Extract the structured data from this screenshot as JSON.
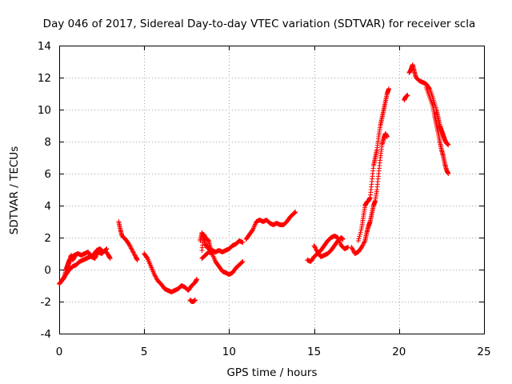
{
  "chart_data": {
    "type": "scatter",
    "title": "Day 046 of 2017, Sidereal Day-to-day VTEC variation (SDTVAR) for receiver scla",
    "xlabel": "GPS time / hours",
    "ylabel": "SDTVAR / TECUs",
    "xlim": [
      0,
      25
    ],
    "ylim": [
      -4,
      14
    ],
    "xticks": [
      0,
      5,
      10,
      15,
      20,
      25
    ],
    "yticks": [
      -4,
      -2,
      0,
      2,
      4,
      6,
      8,
      10,
      12,
      14
    ],
    "grid": true,
    "marker": "+",
    "color": "#ff0000",
    "series": [
      {
        "name": "SDTVAR",
        "segments": [
          [
            [
              0,
              -0.9
            ],
            [
              0.15,
              -0.7
            ],
            [
              0.3,
              -0.5
            ],
            [
              0.4,
              0.0
            ],
            [
              0.5,
              0.3
            ],
            [
              0.6,
              0.6
            ],
            [
              0.75,
              0.8
            ],
            [
              0.9,
              0.9
            ],
            [
              1.1,
              1.0
            ],
            [
              1.3,
              0.9
            ],
            [
              1.5,
              1.0
            ],
            [
              1.7,
              1.1
            ],
            [
              1.9,
              0.8
            ],
            [
              2.1,
              0.7
            ],
            [
              2.3,
              1.1
            ],
            [
              2.5,
              1.0
            ],
            [
              2.7,
              1.2
            ],
            [
              2.9,
              0.9
            ],
            [
              3.0,
              0.7
            ]
          ],
          [
            [
              0.2,
              -0.6
            ],
            [
              0.4,
              -0.3
            ],
            [
              0.6,
              0.0
            ],
            [
              0.8,
              0.2
            ],
            [
              1.0,
              0.3
            ],
            [
              1.2,
              0.5
            ],
            [
              1.4,
              0.6
            ],
            [
              1.6,
              0.7
            ],
            [
              1.8,
              0.8
            ],
            [
              2.0,
              0.9
            ],
            [
              2.2,
              1.2
            ],
            [
              2.4,
              1.3
            ],
            [
              2.6,
              1.1
            ],
            [
              2.8,
              1.3
            ]
          ],
          [
            [
              0.5,
              0.2
            ],
            [
              0.6,
              0.5
            ],
            [
              0.7,
              0.9
            ],
            [
              0.8,
              0.6
            ],
            [
              0.9,
              0.8
            ]
          ],
          [
            [
              3.5,
              3.0
            ],
            [
              3.6,
              2.5
            ],
            [
              3.7,
              2.1
            ],
            [
              3.9,
              1.9
            ],
            [
              4.1,
              1.6
            ],
            [
              4.3,
              1.2
            ],
            [
              4.5,
              0.8
            ],
            [
              4.6,
              0.6
            ]
          ],
          [
            [
              5.0,
              1.0
            ],
            [
              5.2,
              0.7
            ],
            [
              5.4,
              0.2
            ],
            [
              5.6,
              -0.3
            ],
            [
              5.8,
              -0.7
            ],
            [
              6.0,
              -0.9
            ],
            [
              6.2,
              -1.2
            ],
            [
              6.4,
              -1.3
            ],
            [
              6.6,
              -1.4
            ],
            [
              6.8,
              -1.3
            ],
            [
              7.0,
              -1.2
            ],
            [
              7.2,
              -1.0
            ],
            [
              7.4,
              -1.1
            ],
            [
              7.6,
              -1.3
            ],
            [
              7.8,
              -1.0
            ],
            [
              8.0,
              -0.8
            ],
            [
              8.1,
              -0.6
            ]
          ],
          [
            [
              7.7,
              -1.9
            ],
            [
              7.8,
              -2.0
            ],
            [
              7.9,
              -2.0
            ],
            [
              8.0,
              -1.9
            ]
          ],
          [
            [
              8.4,
              1.2
            ],
            [
              8.5,
              2.2
            ],
            [
              8.6,
              2.0
            ],
            [
              8.7,
              1.9
            ],
            [
              8.8,
              1.8
            ],
            [
              8.9,
              1.3
            ],
            [
              9.0,
              1.2
            ],
            [
              9.2,
              1.1
            ],
            [
              9.4,
              1.2
            ],
            [
              9.6,
              1.1
            ],
            [
              9.8,
              1.2
            ],
            [
              10.0,
              1.3
            ],
            [
              10.2,
              1.5
            ],
            [
              10.4,
              1.6
            ],
            [
              10.6,
              1.8
            ],
            [
              10.8,
              1.7
            ]
          ],
          [
            [
              8.4,
              0.7
            ],
            [
              8.6,
              0.9
            ],
            [
              8.8,
              1.1
            ],
            [
              9.0,
              1.0
            ],
            [
              9.2,
              0.5
            ],
            [
              9.4,
              0.2
            ],
            [
              9.6,
              -0.1
            ],
            [
              9.8,
              -0.2
            ],
            [
              10.0,
              -0.3
            ],
            [
              10.2,
              -0.2
            ],
            [
              10.4,
              0.1
            ],
            [
              10.6,
              0.3
            ],
            [
              10.8,
              0.5
            ]
          ],
          [
            [
              8.3,
              1.8
            ],
            [
              8.4,
              2.3
            ],
            [
              8.5,
              2.1
            ],
            [
              8.6,
              1.6
            ],
            [
              8.7,
              1.4
            ],
            [
              8.8,
              1.3
            ]
          ],
          [
            [
              11.0,
              1.9
            ],
            [
              11.2,
              2.2
            ],
            [
              11.4,
              2.5
            ],
            [
              11.6,
              3.0
            ],
            [
              11.8,
              3.1
            ],
            [
              12.0,
              3.0
            ],
            [
              12.2,
              3.1
            ],
            [
              12.4,
              2.9
            ],
            [
              12.6,
              2.8
            ],
            [
              12.8,
              2.9
            ],
            [
              13.0,
              2.8
            ],
            [
              13.2,
              2.8
            ],
            [
              13.4,
              3.0
            ],
            [
              13.6,
              3.3
            ],
            [
              13.8,
              3.5
            ],
            [
              13.9,
              3.6
            ]
          ],
          [
            [
              14.6,
              0.6
            ],
            [
              14.8,
              0.5
            ],
            [
              15.0,
              0.8
            ],
            [
              15.2,
              1.0
            ],
            [
              15.4,
              1.2
            ],
            [
              15.6,
              1.5
            ],
            [
              15.8,
              1.8
            ],
            [
              16.0,
              2.0
            ],
            [
              16.2,
              2.1
            ],
            [
              16.4,
              2.0
            ],
            [
              16.6,
              1.5
            ],
            [
              16.8,
              1.3
            ],
            [
              17.0,
              1.4
            ]
          ],
          [
            [
              15.0,
              1.5
            ],
            [
              15.2,
              1.1
            ],
            [
              15.4,
              0.8
            ],
            [
              15.6,
              0.9
            ],
            [
              15.8,
              1.0
            ],
            [
              16.0,
              1.2
            ],
            [
              16.2,
              1.5
            ],
            [
              16.4,
              1.8
            ],
            [
              16.6,
              2.0
            ],
            [
              16.7,
              1.9
            ]
          ],
          [
            [
              17.2,
              1.4
            ],
            [
              17.4,
              1.0
            ],
            [
              17.6,
              1.1
            ],
            [
              17.8,
              1.4
            ],
            [
              18.0,
              1.8
            ],
            [
              18.1,
              2.3
            ],
            [
              18.2,
              2.7
            ],
            [
              18.3,
              3.0
            ],
            [
              18.4,
              3.5
            ],
            [
              18.5,
              4.0
            ],
            [
              18.6,
              4.3
            ],
            [
              18.7,
              5.0
            ],
            [
              18.8,
              6.0
            ],
            [
              18.9,
              7.0
            ],
            [
              19.0,
              7.8
            ],
            [
              19.1,
              8.2
            ],
            [
              19.2,
              8.5
            ],
            [
              19.3,
              8.3
            ]
          ],
          [
            [
              17.6,
              1.8
            ],
            [
              17.8,
              2.6
            ],
            [
              17.9,
              3.3
            ],
            [
              18.0,
              4.0
            ],
            [
              18.1,
              4.2
            ],
            [
              18.2,
              4.3
            ],
            [
              18.3,
              4.5
            ],
            [
              18.4,
              5.5
            ],
            [
              18.5,
              6.5
            ],
            [
              18.6,
              7.0
            ],
            [
              18.7,
              7.5
            ],
            [
              18.8,
              8.3
            ],
            [
              18.9,
              9.0
            ],
            [
              19.0,
              9.5
            ],
            [
              19.1,
              10.0
            ],
            [
              19.2,
              10.5
            ],
            [
              19.3,
              11.0
            ],
            [
              19.4,
              11.3
            ]
          ],
          [
            [
              20.3,
              10.6
            ],
            [
              20.4,
              10.8
            ],
            [
              20.5,
              10.9
            ]
          ],
          [
            [
              20.6,
              12.3
            ],
            [
              20.7,
              12.5
            ],
            [
              20.8,
              12.8
            ],
            [
              20.9,
              12.4
            ],
            [
              21.0,
              12.0
            ],
            [
              21.2,
              11.8
            ],
            [
              21.4,
              11.7
            ],
            [
              21.6,
              11.6
            ],
            [
              21.8,
              11.3
            ],
            [
              22.0,
              10.7
            ],
            [
              22.2,
              10.0
            ],
            [
              22.3,
              9.5
            ],
            [
              22.4,
              9.0
            ],
            [
              22.5,
              8.7
            ],
            [
              22.6,
              8.4
            ],
            [
              22.7,
              8.1
            ],
            [
              22.8,
              7.9
            ],
            [
              22.9,
              7.8
            ]
          ],
          [
            [
              21.6,
              11.4
            ],
            [
              21.8,
              10.8
            ],
            [
              22.0,
              10.2
            ],
            [
              22.1,
              9.6
            ],
            [
              22.2,
              9.1
            ],
            [
              22.3,
              8.6
            ],
            [
              22.4,
              8.0
            ],
            [
              22.5,
              7.5
            ],
            [
              22.6,
              7.1
            ],
            [
              22.7,
              6.6
            ],
            [
              22.8,
              6.2
            ],
            [
              22.9,
              6.0
            ]
          ]
        ]
      }
    ]
  }
}
